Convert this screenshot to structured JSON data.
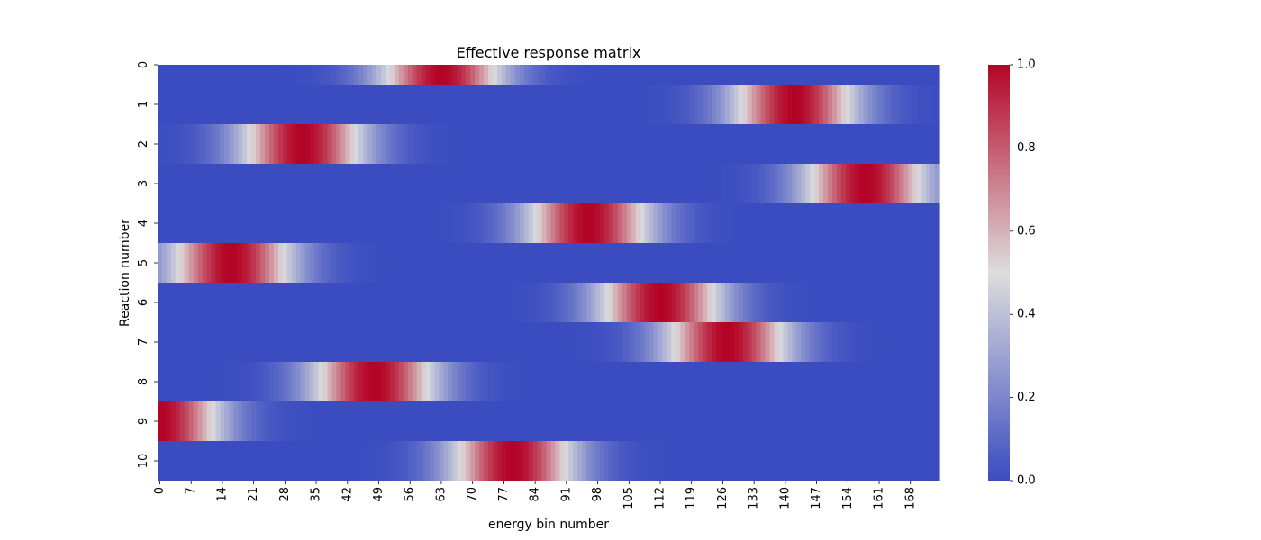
{
  "chart_data": {
    "type": "heatmap",
    "title": "Effective response matrix",
    "xlabel": "energy bin number",
    "ylabel": "Reaction number",
    "n_cols": 175,
    "rows": [
      0,
      1,
      2,
      3,
      4,
      5,
      6,
      7,
      8,
      9,
      10
    ],
    "x_tick_labels": [
      "0",
      "7",
      "14",
      "21",
      "28",
      "35",
      "42",
      "49",
      "56",
      "63",
      "70",
      "77",
      "84",
      "91",
      "98",
      "105",
      "112",
      "119",
      "126",
      "133",
      "140",
      "147",
      "154",
      "161",
      "168"
    ],
    "y_tick_labels": [
      "0",
      "1",
      "2",
      "3",
      "4",
      "5",
      "6",
      "7",
      "8",
      "9",
      "10"
    ],
    "value_range": [
      0,
      1
    ],
    "colormap": "coolwarm",
    "colormap_stops": [
      "#3b4cc0",
      "#dddddd",
      "#b40426"
    ],
    "colorbar": {
      "tick_labels": [
        "0.0",
        "0.2",
        "0.4",
        "0.6",
        "0.8",
        "1.0"
      ],
      "tick_values": [
        0.0,
        0.2,
        0.4,
        0.6,
        0.8,
        1.0
      ]
    },
    "row_peaks": [
      {
        "row": 0,
        "peak_bin": 63,
        "spread_bins": 14
      },
      {
        "row": 1,
        "peak_bin": 142,
        "spread_bins": 14
      },
      {
        "row": 2,
        "peak_bin": 32,
        "spread_bins": 14
      },
      {
        "row": 3,
        "peak_bin": 158,
        "spread_bins": 14
      },
      {
        "row": 4,
        "peak_bin": 96,
        "spread_bins": 14
      },
      {
        "row": 5,
        "peak_bin": 16,
        "spread_bins": 14
      },
      {
        "row": 6,
        "peak_bin": 112,
        "spread_bins": 14
      },
      {
        "row": 7,
        "peak_bin": 127,
        "spread_bins": 14
      },
      {
        "row": 8,
        "peak_bin": 48,
        "spread_bins": 14
      },
      {
        "row": 9,
        "peak_bin": 0,
        "spread_bins": 14
      },
      {
        "row": 10,
        "peak_bin": 79,
        "spread_bins": 14
      }
    ]
  }
}
